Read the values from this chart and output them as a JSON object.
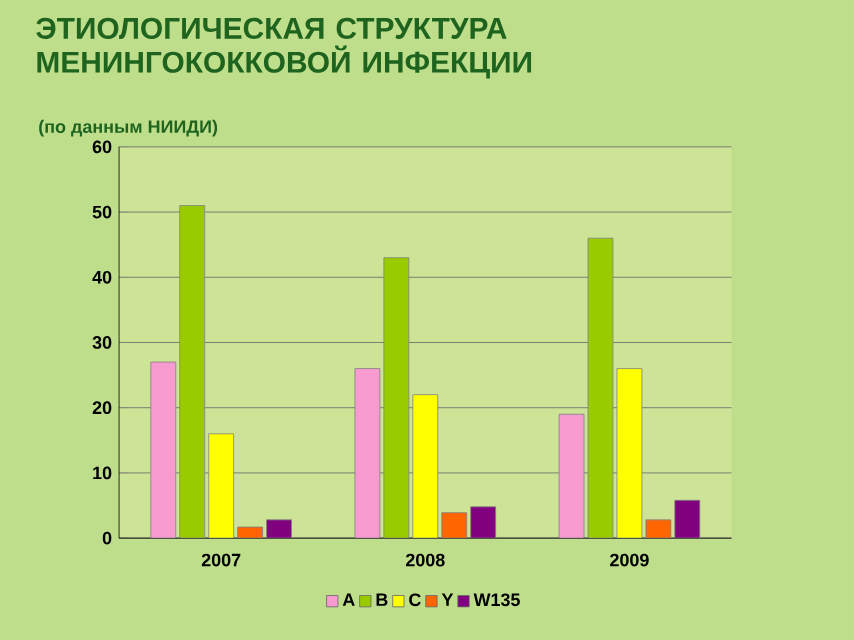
{
  "chart_data": {
    "type": "bar",
    "title": "ЭТИОЛОГИЧЕСКАЯ СТРУКТУРА МЕНИНГОКОККОВОЙ ИНФЕКЦИИ",
    "subtitle": "(по данным НИИДИ)",
    "categories": [
      "2007",
      "2008",
      "2009"
    ],
    "series": [
      {
        "name": "A",
        "color": "#f79ad0",
        "values": [
          27,
          26,
          19
        ]
      },
      {
        "name": "B",
        "color": "#99cc00",
        "values": [
          51,
          43,
          46
        ]
      },
      {
        "name": "C",
        "color": "#ffff00",
        "values": [
          16,
          22,
          26
        ]
      },
      {
        "name": "Y",
        "color": "#ff6600",
        "values": [
          1.7,
          3.9,
          2.8
        ]
      },
      {
        "name": "W135",
        "color": "#800080",
        "values": [
          2.8,
          4.8,
          5.8
        ]
      }
    ],
    "ylim": [
      0,
      60
    ],
    "yticks": [
      0,
      10,
      20,
      30,
      40,
      50,
      60
    ],
    "grid": "y",
    "legend": "bottom"
  }
}
